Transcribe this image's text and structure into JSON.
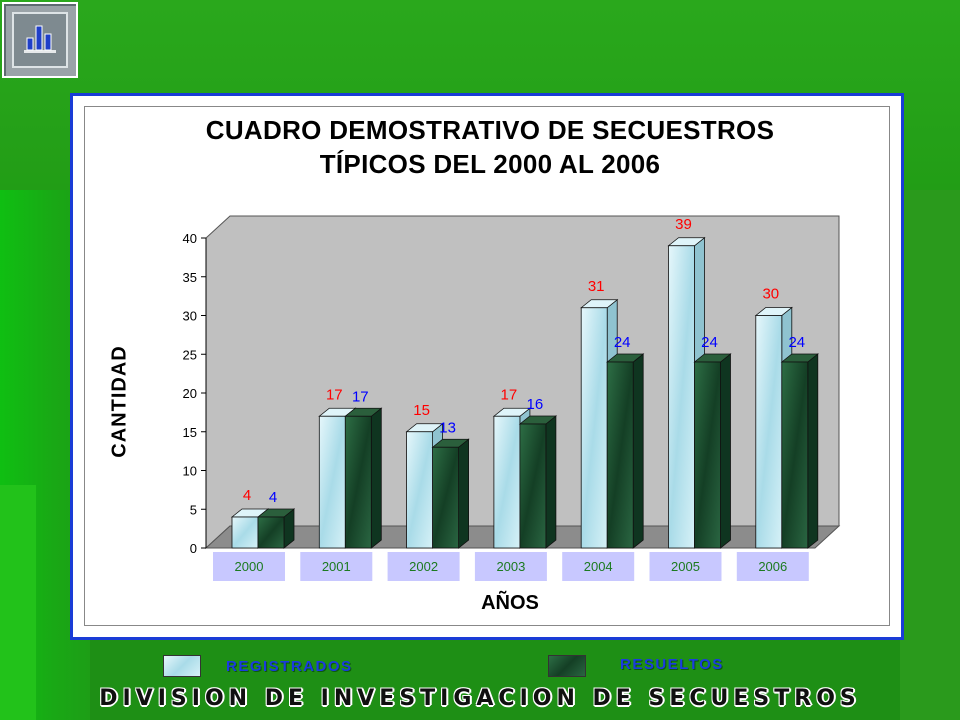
{
  "colors": {
    "registrados": "#bfe8f2",
    "resueltos": "#1f5a36",
    "label_registrados": "#ff0000",
    "label_resueltos": "#0000ff",
    "frame_border": "#1a3cd6",
    "tick_box": "#c8c8ff",
    "tick_text": "#1c7a20",
    "background": "#1f9a14"
  },
  "icons": {
    "logo": "bar-chart-icon"
  },
  "chart_data": {
    "type": "bar",
    "title_line1": "CUADRO DEMOSTRATIVO DE SECUESTROS",
    "title_line2": "TÍPICOS  DEL 2000 AL 2006",
    "xlabel": "AÑOS",
    "ylabel": "CANTIDAD",
    "ylim": [
      0,
      40
    ],
    "yticks": [
      "0",
      "5",
      "10",
      "15",
      "20",
      "25",
      "30",
      "35",
      "40"
    ],
    "categories": [
      "2000",
      "2001",
      "2002",
      "2003",
      "2004",
      "2005",
      "2006"
    ],
    "series": [
      {
        "name": "REGISTRADOS",
        "values": [
          4,
          17,
          15,
          17,
          31,
          39,
          30
        ]
      },
      {
        "name": "RESUELTOS",
        "values": [
          4,
          17,
          13,
          16,
          24,
          24,
          24
        ]
      }
    ],
    "grid": false,
    "legend_position": "bottom"
  },
  "footer": {
    "title": "DIVISION DE INVESTIGACION DE SECUESTROS"
  }
}
